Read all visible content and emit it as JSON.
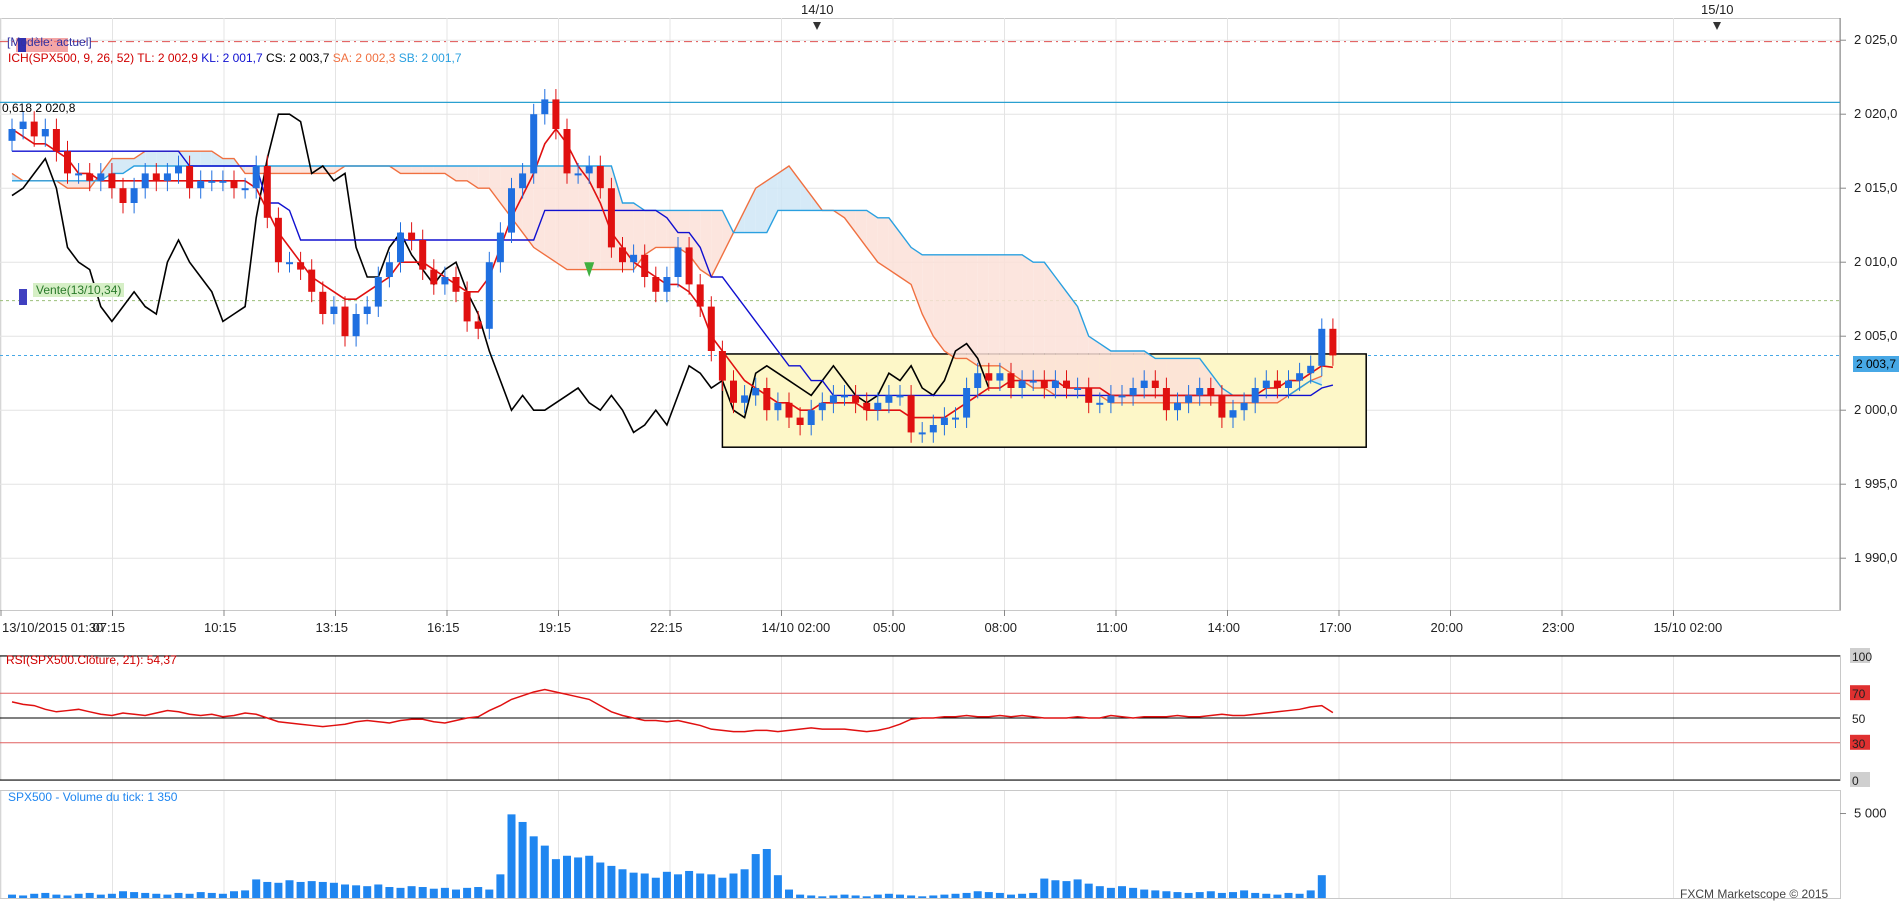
{
  "header": {
    "template_label": "[Modèle: actuel]",
    "indicator_prefix": "ICH(SPX500, 9, 26, 52)",
    "tl": "TL: 2 002,9",
    "kl": "KL: 2 001,7",
    "cs": "CS: 2 003,7",
    "sa": "SA: 2 002,3",
    "sb": "SB: 2 001,7",
    "fib_label": "0,618 2 020,8",
    "trade_marker": "Vente(13/10,34)",
    "current_price": "2 003,7",
    "date_flags": [
      "14/10",
      "15/10"
    ]
  },
  "rsi_panel": {
    "label": "RSI(SPX500.Clôture, 21): 54,37",
    "axis_labels": [
      "100",
      "70",
      "50",
      "30",
      "0"
    ]
  },
  "volume_panel": {
    "label": "SPX500 - Volume du tick: 1 350",
    "axis_labels": [
      "5 000"
    ],
    "copyright": "FXCM Marketscope © 2015"
  },
  "colors": {
    "bull": "#1f6fe0",
    "bear": "#e01010",
    "tenkan": "#e01010",
    "kijun": "#1010d0",
    "senkou_a": "#f07040",
    "senkou_b": "#2aa0e0",
    "chikou": "#000000",
    "cloud_bull": "#cfe6f6",
    "cloud_bear": "#fbe0d8",
    "consolidation_box": "#fdf7c8",
    "volume": "#1f86f0",
    "rsi": "#e01010"
  },
  "chart_data": [
    {
      "type": "candlestick",
      "title": "ICH(SPX500, 9, 26, 52)",
      "ylim": [
        1986.5,
        2026.5
      ],
      "y_ticks": [
        1990,
        1995,
        2000,
        2005,
        2010,
        2015,
        2020,
        2025
      ],
      "y_tick_labels": [
        "1 990,0",
        "1 995,0",
        "2 000,0",
        "2 005,0",
        "2 010,0",
        "2 015,0",
        "2 020,0",
        "2 025,0"
      ],
      "x_ticks": [
        "13/10/2015 01:30",
        "07:15",
        "10:15",
        "13:15",
        "16:15",
        "19:15",
        "22:15",
        "14/10 02:00",
        "05:00",
        "08:00",
        "11:00",
        "14:00",
        "17:00",
        "20:00",
        "23:00",
        "15/10 02:00"
      ],
      "horizontal_levels": [
        {
          "name": "0,618",
          "value": 2020.8
        },
        {
          "name": "Vente",
          "value": 2007.4
        },
        {
          "name": "current",
          "value": 2003.7
        },
        {
          "name": "upper",
          "value": 2024.9
        }
      ],
      "consolidation_range": [
        1997.5,
        2003.8
      ],
      "closes": [
        2019,
        2019.5,
        2018.5,
        2019,
        2017.5,
        2016,
        2016,
        2015.5,
        2016,
        2015,
        2014,
        2015,
        2016,
        2015.5,
        2016,
        2016.5,
        2015,
        2015.5,
        2015.5,
        2015.5,
        2015,
        2015,
        2016.5,
        2013,
        2010,
        2010,
        2009.5,
        2008,
        2006.5,
        2007,
        2005,
        2006.5,
        2007,
        2009,
        2010,
        2012,
        2011.5,
        2009.5,
        2008.5,
        2009,
        2008,
        2006,
        2005.5,
        2010,
        2012,
        2015,
        2016,
        2020,
        2021,
        2019,
        2016,
        2016,
        2016.5,
        2015,
        2011,
        2010,
        2010.5,
        2009,
        2008,
        2009,
        2011,
        2008.5,
        2007,
        2004,
        2002,
        2000.5,
        2001,
        2001.5,
        2000,
        2000.5,
        1999.5,
        1999,
        2000,
        2000.5,
        2001,
        2001,
        2000.5,
        2000,
        2000.5,
        2001,
        2001,
        1998.5,
        1998.5,
        1999,
        1999.5,
        1999.5,
        2001.5,
        2002.5,
        2002,
        2002.5,
        2001.5,
        2002,
        2002,
        2001.5,
        2002,
        2001.5,
        2001.5,
        2000.5,
        2000.5,
        2001,
        2001,
        2001.5,
        2002,
        2001.5,
        2000,
        2000.5,
        2001,
        2001.5,
        2001,
        1999.5,
        2000,
        2000.5,
        2001.5,
        2002,
        2001.5,
        2002,
        2002.5,
        2003,
        2005.5,
        2003.7
      ],
      "tenkan": [
        2019,
        2018.5,
        2018,
        2018,
        2017.5,
        2017,
        2016,
        2016,
        2015.5,
        2015.5,
        2015.5,
        2015.5,
        2015.5,
        2015.5,
        2015.5,
        2015.5,
        2015.5,
        2015.5,
        2015.5,
        2015.5,
        2015.5,
        2015.5,
        2015,
        2013.5,
        2012,
        2011,
        2010,
        2009,
        2008.5,
        2008,
        2007.5,
        2007.5,
        2008,
        2008.5,
        2009,
        2010,
        2010,
        2010,
        2009.5,
        2009,
        2008.5,
        2008,
        2008,
        2009,
        2011,
        2013,
        2014.5,
        2016,
        2018,
        2019,
        2018,
        2016.5,
        2015.5,
        2014,
        2012,
        2011,
        2010,
        2009.5,
        2009,
        2008.5,
        2008.5,
        2008,
        2007,
        2005,
        2004,
        2003,
        2002,
        2001.5,
        2001,
        2000.5,
        2000.5,
        2000,
        2000,
        2000.5,
        2000.5,
        2000.5,
        2000.5,
        2000,
        2000,
        2000,
        2000,
        1999.5,
        1999.5,
        1999.5,
        1999.5,
        2000,
        2000.5,
        2001,
        2001.5,
        2001.5,
        2002,
        2002,
        2002,
        2002,
        2002,
        2001.5,
        2001.5,
        2001.5,
        2001.5,
        2001,
        2001,
        2001,
        2001,
        2001,
        2001,
        2001,
        2001,
        2001,
        2001,
        2001,
        2001,
        2001,
        2001,
        2001.5,
        2001.5,
        2002,
        2002,
        2002.5,
        2003,
        2002.9
      ],
      "kijun": [
        2017.5,
        2017.5,
        2017.5,
        2017.5,
        2017.5,
        2017.5,
        2017.5,
        2017.5,
        2017.5,
        2017.5,
        2017.5,
        2017.5,
        2017.5,
        2017.5,
        2017.5,
        2017.5,
        2016.5,
        2016.5,
        2016.5,
        2016.5,
        2016.5,
        2016.5,
        2016.5,
        2014,
        2014,
        2013.5,
        2011.5,
        2011.5,
        2011.5,
        2011.5,
        2011.5,
        2011.5,
        2011.5,
        2011.5,
        2011.5,
        2011.5,
        2011.5,
        2011.5,
        2011.5,
        2011.5,
        2011.5,
        2011.5,
        2011.5,
        2011.5,
        2011.5,
        2011.5,
        2011.5,
        2011.5,
        2013.5,
        2013.5,
        2013.5,
        2013.5,
        2013.5,
        2013.5,
        2013.5,
        2013.5,
        2013.5,
        2013.5,
        2013.5,
        2013,
        2012,
        2012,
        2011,
        2009,
        2009,
        2008,
        2007,
        2006,
        2005,
        2004,
        2003,
        2003,
        2002,
        2002,
        2001,
        2001,
        2001,
        2001,
        2001,
        2001,
        2001,
        2001,
        2001,
        2001,
        2001,
        2001,
        2001,
        2001,
        2001,
        2001,
        2001,
        2001,
        2001,
        2001,
        2001,
        2001,
        2001,
        2001,
        2001,
        2001,
        2001,
        2001,
        2001,
        2001,
        2001,
        2001,
        2001,
        2001,
        2001,
        2001,
        2001,
        2001,
        2001,
        2001,
        2001,
        2001,
        2001,
        2001,
        2001.5,
        2001.7
      ],
      "senkou_a": [
        2016,
        2015.5,
        2015.5,
        2015.5,
        2015.5,
        2015,
        2015,
        2015,
        2016,
        2017,
        2017,
        2017,
        2017.5,
        2017.5,
        2017.5,
        2017.5,
        2017.5,
        2017.5,
        2017.5,
        2017,
        2017,
        2016,
        2016,
        2016,
        2016,
        2016,
        2016,
        2016,
        2016,
        2016,
        2016.5,
        2016.5,
        2016.5,
        2016.5,
        2016.5,
        2016,
        2016,
        2016,
        2016,
        2016,
        2015.5,
        2015.5,
        2015,
        2015,
        2014,
        2013,
        2012,
        2011,
        2010.5,
        2010,
        2009.5,
        2009.5,
        2009.5,
        2009.5,
        2009.5,
        2009.5,
        2009.5,
        2010.5,
        2011,
        2011,
        2011,
        2010.5,
        2009.5,
        2009,
        2010.5,
        2012,
        2013.5,
        2015,
        2015.5,
        2016,
        2016.5,
        2015.5,
        2014.5,
        2013.5,
        2013.5,
        2013,
        2012,
        2011,
        2010,
        2009.5,
        2009,
        2008.5,
        2006.5,
        2005,
        2004,
        2003.5,
        2003.5,
        2003,
        2003,
        2003,
        2002.5,
        2002,
        2001.5,
        2001.5,
        2001,
        2001,
        2001,
        2001,
        2001,
        2000.5,
        2000.5,
        2000.5,
        2000.5,
        2000.5,
        2000.5,
        2000.5,
        2000.5,
        2000.5,
        2000.5,
        2000.5,
        2000.5,
        2000.5,
        2000.5,
        2000.5,
        2000.5,
        2001,
        2001.5,
        2002,
        2002.3
      ],
      "senkou_b": [
        2015.5,
        2015.5,
        2015.5,
        2015.5,
        2015.5,
        2015.5,
        2015.5,
        2015.5,
        2015.5,
        2016,
        2016,
        2016.5,
        2016.5,
        2016.5,
        2016.5,
        2016.5,
        2016.5,
        2016.5,
        2016.5,
        2016.5,
        2016.5,
        2016.5,
        2016.5,
        2016.5,
        2016.5,
        2016.5,
        2016.5,
        2016.5,
        2016.5,
        2016.5,
        2016.5,
        2016.5,
        2016.5,
        2016.5,
        2016.5,
        2016.5,
        2016.5,
        2016.5,
        2016.5,
        2016.5,
        2016.5,
        2016.5,
        2016.5,
        2016.5,
        2016.5,
        2016.5,
        2016.5,
        2016.5,
        2016.5,
        2016.5,
        2016.5,
        2016.5,
        2016.5,
        2016.5,
        2016.5,
        2014,
        2014,
        2013.5,
        2013.5,
        2013.5,
        2013.5,
        2013.5,
        2013.5,
        2013.5,
        2013.5,
        2012,
        2012,
        2012,
        2012,
        2013.5,
        2013.5,
        2013.5,
        2013.5,
        2013.5,
        2013.5,
        2013.5,
        2013.5,
        2013.5,
        2013,
        2013,
        2012,
        2011,
        2010.5,
        2010.5,
        2010.5,
        2010.5,
        2010.5,
        2010.5,
        2010.5,
        2010.5,
        2010.5,
        2010.5,
        2010,
        2010,
        2009,
        2008,
        2007,
        2005,
        2004.5,
        2004,
        2004,
        2004,
        2004,
        2003.5,
        2003.5,
        2003.5,
        2003.5,
        2003.5,
        2002.5,
        2001.5,
        2001,
        2001,
        2001,
        2001,
        2001,
        2001,
        2001.5,
        2002,
        2001.7
      ],
      "chikou": [
        2014.5,
        2015,
        2016,
        2017,
        2015,
        2011,
        2010,
        2009.5,
        2007,
        2006,
        2007,
        2008,
        2007,
        2006.5,
        2010,
        2011.5,
        2010,
        2009,
        2008,
        2006,
        2006.5,
        2007,
        2013,
        2017,
        2020,
        2020,
        2019.5,
        2016,
        2016.5,
        2015.5,
        2016,
        2011,
        2009,
        2009,
        2011,
        2012,
        2010.5,
        2009.5,
        2008.5,
        2009.5,
        2010,
        2008,
        2006.5,
        2004,
        2002,
        2000,
        2001,
        2000,
        2000,
        2000.5,
        2001,
        2001.5,
        2000.5,
        2000,
        2001,
        2000,
        1998.5,
        1999,
        2000,
        1999,
        2001,
        2003,
        2002.5,
        2001.5,
        2002,
        2000,
        1999.5,
        2002.5,
        2003,
        2002.5,
        2002,
        2001.5,
        2001,
        2002,
        2003,
        2002,
        2001,
        2000.5,
        2001,
        2002.5,
        2002,
        2003,
        2001.5,
        2001,
        2002,
        2004,
        2004.5,
        2003.5,
        2001.5
      ],
      "volume_values": [
        200,
        150,
        250,
        300,
        200,
        150,
        250,
        300,
        200,
        250,
        400,
        350,
        300,
        250,
        200,
        300,
        250,
        350,
        300,
        250,
        400,
        450,
        1100,
        950,
        900,
        1050,
        950,
        1000,
        950,
        900,
        800,
        750,
        700,
        800,
        650,
        600,
        700,
        650,
        550,
        600,
        500,
        600,
        650,
        500,
        1400,
        4950,
        4500,
        3650,
        3100,
        2300,
        2500,
        2400,
        2500,
        2100,
        1900,
        1700,
        1500,
        1450,
        1200,
        1550,
        1400,
        1600,
        1450,
        1400,
        1200,
        1450,
        1700,
        2600,
        2900,
        1350,
        500,
        200,
        150,
        100,
        150,
        200,
        150,
        100,
        200,
        250,
        200,
        150,
        100,
        150,
        200,
        250,
        300,
        400,
        350,
        300,
        200,
        250,
        300,
        1150,
        1050,
        1000,
        1100,
        850,
        700,
        600,
        700,
        600,
        500,
        450,
        400,
        350,
        300,
        350,
        400,
        300,
        350,
        450,
        300,
        250,
        200,
        300,
        250,
        450,
        1350
      ],
      "rsi_values": [
        63,
        61,
        60,
        57,
        55,
        56,
        57,
        55,
        53,
        52,
        54,
        53,
        52,
        54,
        56,
        55,
        53,
        52,
        53,
        51,
        52,
        54,
        53,
        50,
        47,
        46,
        45,
        44,
        43,
        44,
        45,
        47,
        48,
        47,
        46,
        48,
        49,
        49,
        47,
        46,
        48,
        50,
        51,
        56,
        60,
        65,
        68,
        71,
        73,
        71,
        69,
        67,
        65,
        60,
        55,
        52,
        50,
        48,
        48,
        47,
        48,
        46,
        44,
        41,
        40,
        39,
        39,
        40,
        40,
        39,
        40,
        41,
        42,
        41,
        41,
        41,
        40,
        39,
        40,
        42,
        45,
        49,
        50,
        50,
        51,
        51,
        52,
        51,
        51,
        52,
        51,
        52,
        51,
        50,
        50,
        50,
        51,
        50,
        50,
        52,
        51,
        50,
        51,
        51,
        51,
        52,
        51,
        51,
        52,
        53,
        52,
        52,
        53,
        54,
        55,
        56,
        57,
        59,
        60,
        54.37
      ]
    }
  ]
}
